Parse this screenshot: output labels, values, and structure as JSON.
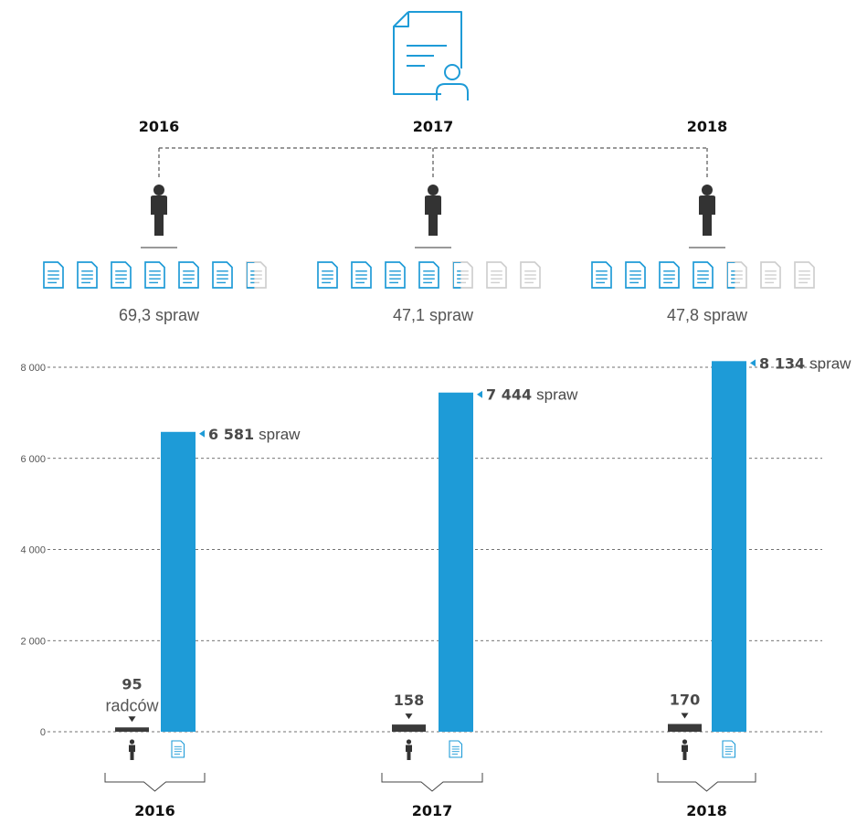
{
  "chart_data": {
    "type": "bar",
    "categories": [
      "2016",
      "2017",
      "2018"
    ],
    "ylim": [
      0,
      8000
    ],
    "yticks": [
      "8 000",
      "6 000",
      "4 000",
      "2 000",
      "0"
    ],
    "ytick_values": [
      8000,
      6000,
      4000,
      2000,
      0
    ],
    "series": [
      {
        "values": [
          95,
          158,
          170
        ],
        "color": "#3a3a3a"
      },
      {
        "values": [
          6581,
          7444,
          8134
        ],
        "color": "#1e9bd7"
      }
    ],
    "lawyer_labels": [
      {
        "value": "95",
        "unit": "radców"
      },
      {
        "value": "158",
        "unit": ""
      },
      {
        "value": "170",
        "unit": ""
      }
    ],
    "case_labels": [
      {
        "value": "6 581",
        "unit": "spraw"
      },
      {
        "value": "7 444",
        "unit": "spraw"
      },
      {
        "value": "8 134",
        "unit": "spraw"
      }
    ],
    "ratio_labels": [
      "69,3 spraw",
      "47,1 spraw",
      "47,8 spraw"
    ],
    "ratio_values": [
      69.3,
      47.1,
      47.8
    ],
    "top_years": [
      "2016",
      "2017",
      "2018"
    ],
    "bottom_years": [
      "2016",
      "2017",
      "2018"
    ],
    "grid": true
  },
  "icons": {
    "header": "document-person-icon",
    "lawyer": "person-icon",
    "case": "document-icon"
  },
  "colors": {
    "blue": "#1e9bd7",
    "dark": "#3a3a3a",
    "faded": "#cfcfcf"
  }
}
